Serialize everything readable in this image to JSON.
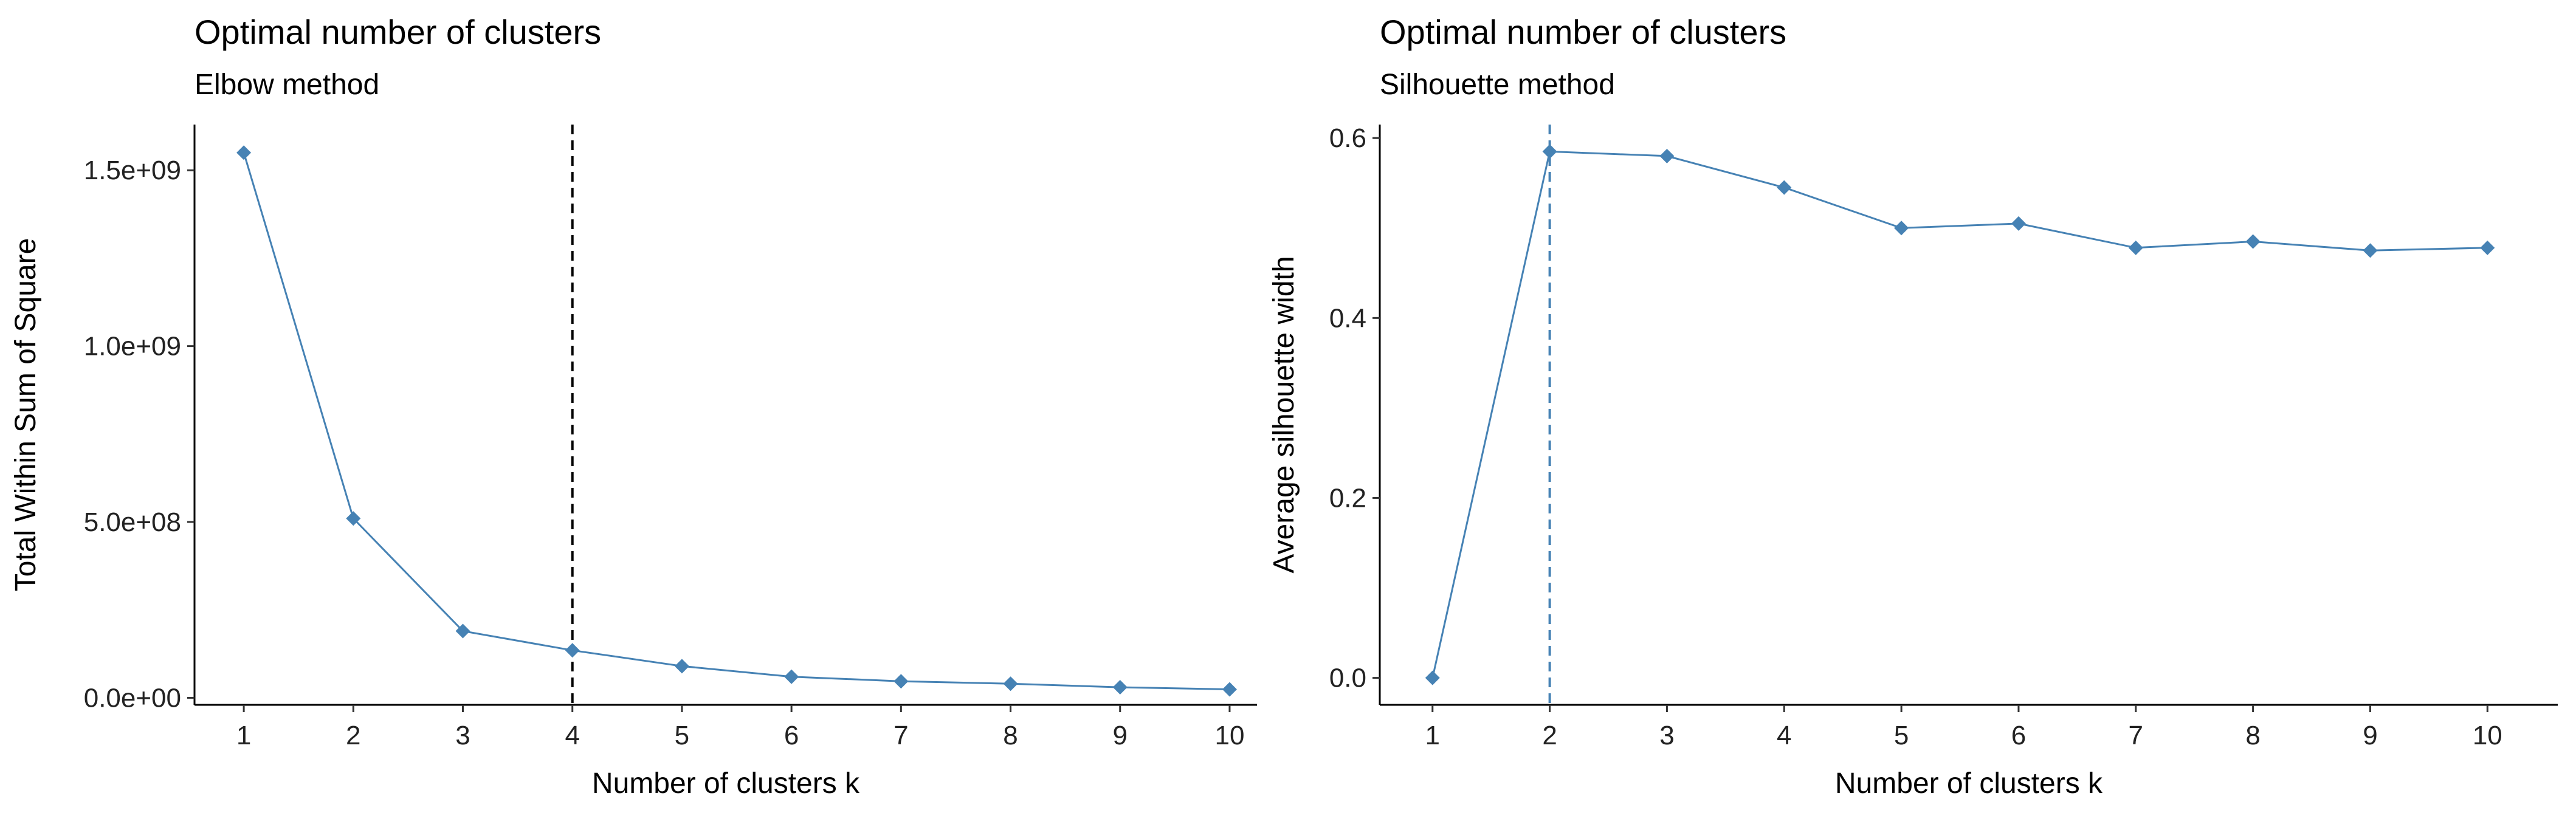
{
  "chart_data": [
    {
      "type": "line",
      "title": "Optimal number of clusters",
      "subtitle": "Elbow method",
      "xlabel": "Number of clusters k",
      "ylabel": "Total Within Sum of Square",
      "x": [
        1,
        2,
        3,
        4,
        5,
        6,
        7,
        8,
        9,
        10
      ],
      "xticks": [
        "1",
        "2",
        "3",
        "4",
        "5",
        "6",
        "7",
        "8",
        "9",
        "10"
      ],
      "series": [
        {
          "values": [
            1550000000,
            510000000,
            190000000,
            135000000,
            90000000,
            60000000,
            47000000,
            40000000,
            30000000,
            24000000
          ]
        }
      ],
      "yticks": [
        0,
        500000000,
        1000000000,
        1500000000
      ],
      "ytick_labels": [
        "0.0e+00",
        "5.0e+08",
        "1.0e+09",
        "1.5e+09"
      ],
      "ylim": [
        -20000000,
        1630000000
      ],
      "xlim": [
        0.55,
        10.25
      ],
      "vline": {
        "x": 4,
        "style": "dashed",
        "color": "#000000"
      },
      "colors": {
        "series": "#4682B4",
        "vline": "#000000"
      },
      "grid": false,
      "legend": "none"
    },
    {
      "type": "line",
      "title": "Optimal number of clusters",
      "subtitle": "Silhouette method",
      "xlabel": "Number of clusters k",
      "ylabel": "Average silhouette width",
      "x": [
        1,
        2,
        3,
        4,
        5,
        6,
        7,
        8,
        9,
        10
      ],
      "xticks": [
        "1",
        "2",
        "3",
        "4",
        "5",
        "6",
        "7",
        "8",
        "9",
        "10"
      ],
      "series": [
        {
          "values": [
            0.0,
            0.585,
            0.58,
            0.545,
            0.5,
            0.505,
            0.478,
            0.485,
            0.475,
            0.478
          ]
        }
      ],
      "yticks": [
        0,
        0.2,
        0.4,
        0.6
      ],
      "ytick_labels": [
        "0.0",
        "0.2",
        "0.4",
        "0.6"
      ],
      "ylim": [
        -0.03,
        0.615
      ],
      "xlim": [
        0.55,
        10.6
      ],
      "vline": {
        "x": 2,
        "style": "dashed",
        "color": "#4682B4"
      },
      "colors": {
        "series": "#4682B4",
        "vline": "#4682B4"
      },
      "grid": false,
      "legend": "none"
    }
  ]
}
